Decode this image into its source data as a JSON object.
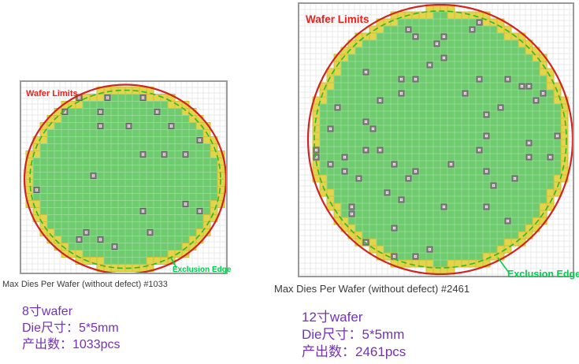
{
  "colors": {
    "wafer_limit_red": "#d02421",
    "exclusion_green": "#2db82d",
    "exclusion_label_green": "#00cf4e",
    "wafer_limits_label_red": "#e8231d",
    "die_green": "#6ecb6e",
    "die_green_line": "#93d993",
    "partial_yellow": "#e3d44b",
    "partial_yellow_line": "#cfc138",
    "defect_gray": "#8b8b8b",
    "defect_border": "#5c5c5c",
    "defect_center": "#ffffff",
    "defect_dot": "#e06aa8",
    "bg_grid_gray": "#e9e9e9",
    "caption_gray": "#3a3a3a",
    "info_purple": "#7531b5"
  },
  "chart_data": [
    {
      "type": "wafer_map",
      "title": "Max Dies Per Wafer (without defect) #1033",
      "wafer_inch": 8,
      "die_size_mm": "5*5",
      "max_dies": 1033,
      "annotations": {
        "wafer_limits": "Wafer Limits",
        "exclusion_edge": "Exclusion Edge"
      },
      "info": [
        "8寸wafer",
        "Die尺寸：5*5mm",
        "产出数：1033pcs"
      ],
      "defect_points_norm": [
        [
          -0.17,
          -0.89
        ],
        [
          0.18,
          -0.89
        ],
        [
          -0.43,
          -0.83
        ],
        [
          -0.59,
          -0.73
        ],
        [
          -0.23,
          -0.74
        ],
        [
          0.32,
          -0.68
        ],
        [
          -0.28,
          -0.58
        ],
        [
          0.03,
          -0.53
        ],
        [
          0.47,
          -0.53
        ],
        [
          0.77,
          -0.44
        ],
        [
          0.18,
          -0.28
        ],
        [
          0.38,
          -0.28
        ],
        [
          0.62,
          -0.28
        ],
        [
          -0.33,
          -0.06
        ],
        [
          -0.88,
          0.13
        ],
        [
          0.57,
          0.23
        ],
        [
          0.18,
          0.3
        ],
        [
          0.71,
          0.3
        ],
        [
          0.27,
          0.54
        ],
        [
          -0.38,
          0.59
        ],
        [
          -0.48,
          0.65
        ],
        [
          -0.23,
          0.64
        ],
        [
          -0.12,
          0.69
        ]
      ]
    },
    {
      "type": "wafer_map",
      "title": "Max Dies Per Wafer (without defect) #2461",
      "wafer_inch": 12,
      "die_size_mm": "5*5",
      "max_dies": 2461,
      "annotations": {
        "wafer_limits": "Wafer Limits",
        "exclusion_edge": "Exclusion Edge"
      },
      "info": [
        "12寸wafer",
        "Die尺寸：5*5mm",
        "产出数：2461pcs"
      ],
      "defect_points_norm": [
        [
          -0.24,
          -0.84
        ],
        [
          0.24,
          -0.81
        ],
        [
          0.31,
          -0.88
        ],
        [
          -0.17,
          -0.78
        ],
        [
          -0.17,
          -0.74
        ],
        [
          0.0,
          -0.74
        ],
        [
          -0.04,
          -0.72
        ],
        [
          0.04,
          -0.6
        ],
        [
          -0.1,
          -0.54
        ],
        [
          -0.57,
          -0.48
        ],
        [
          -0.2,
          -0.47
        ],
        [
          0.27,
          -0.47
        ],
        [
          0.52,
          -0.47
        ],
        [
          -0.28,
          -0.43
        ],
        [
          0.59,
          -0.4
        ],
        [
          0.65,
          -0.4
        ],
        [
          -0.3,
          -0.34
        ],
        [
          -0.47,
          -0.3
        ],
        [
          0.17,
          -0.35
        ],
        [
          0.78,
          -0.34
        ],
        [
          0.72,
          -0.3
        ],
        [
          -0.78,
          -0.26
        ],
        [
          0.46,
          -0.23
        ],
        [
          -0.85,
          -0.1
        ],
        [
          -0.57,
          -0.13
        ],
        [
          0.34,
          -0.16
        ],
        [
          -0.49,
          -0.07
        ],
        [
          0.35,
          -0.02
        ],
        [
          0.86,
          -0.01
        ],
        [
          0.9,
          -0.01
        ],
        [
          -0.92,
          0.07
        ],
        [
          -0.54,
          0.07
        ],
        [
          -0.48,
          0.07
        ],
        [
          -0.72,
          0.11
        ],
        [
          0.31,
          0.09
        ],
        [
          -0.95,
          0.15
        ],
        [
          -0.81,
          0.17
        ],
        [
          0.69,
          0.15
        ],
        [
          0.83,
          0.11
        ],
        [
          -0.74,
          0.24
        ],
        [
          -0.33,
          0.21
        ],
        [
          0.08,
          0.21
        ],
        [
          -0.2,
          0.24
        ],
        [
          -0.23,
          0.27
        ],
        [
          -0.61,
          0.31
        ],
        [
          0.35,
          0.24
        ],
        [
          0.55,
          0.31
        ],
        [
          0.41,
          0.35
        ],
        [
          -0.38,
          0.38
        ],
        [
          -0.27,
          0.44
        ],
        [
          -0.68,
          0.48
        ],
        [
          0.0,
          0.51
        ],
        [
          -0.68,
          0.54
        ],
        [
          0.34,
          0.51
        ],
        [
          0.53,
          0.58
        ],
        [
          -0.34,
          0.65
        ],
        [
          -0.54,
          0.74
        ],
        [
          -0.33,
          0.85
        ],
        [
          -0.1,
          0.82
        ],
        [
          -0.17,
          0.89
        ],
        [
          0.65,
          0.03
        ]
      ]
    }
  ]
}
